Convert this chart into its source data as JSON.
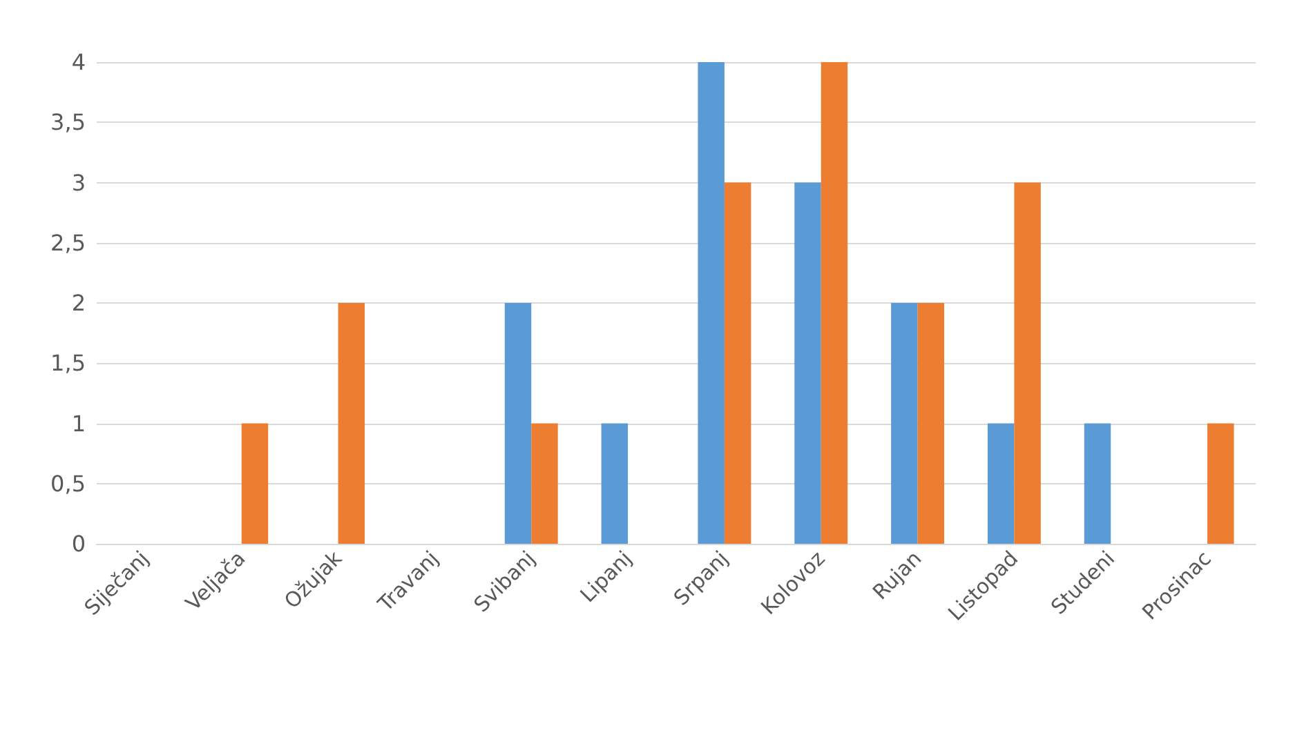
{
  "chart_data": {
    "type": "bar",
    "categories": [
      "Siječanj",
      "Veljača",
      "Ožujak",
      "Travanj",
      "Svibanj",
      "Lipanj",
      "Srpanj",
      "Kolovoz",
      "Rujan",
      "Listopad",
      "Studeni",
      "Prosinac"
    ],
    "series": [
      {
        "color": "#5b9bd5",
        "values": [
          0,
          0,
          0,
          0,
          2,
          1,
          4,
          3,
          2,
          1,
          1,
          0
        ]
      },
      {
        "color": "#ed7d31",
        "values": [
          0,
          1,
          2,
          0,
          1,
          0,
          3,
          4,
          2,
          3,
          0,
          1
        ]
      }
    ],
    "ylim": [
      0,
      4
    ],
    "yticks": [
      0,
      {
        "value": 0.5,
        "label": "0,5"
      },
      1,
      {
        "value": 1.5,
        "label": "1,5"
      },
      2,
      {
        "value": 2.5,
        "label": "2,5"
      },
      3,
      {
        "value": 3.5,
        "label": "3,5"
      },
      4
    ],
    "grid": "y"
  }
}
